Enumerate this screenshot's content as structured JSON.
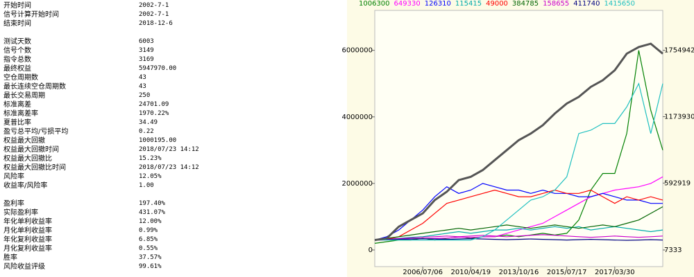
{
  "stats": {
    "groups": [
      [
        {
          "label": "开始时间",
          "value": "2002-7-1"
        },
        {
          "label": "信号计算开始时间",
          "value": "2002-7-1"
        },
        {
          "label": "结束时间",
          "value": "2018-12-6"
        }
      ],
      [
        {
          "label": "测试天数",
          "value": "6003"
        },
        {
          "label": "信号个数",
          "value": "3149"
        },
        {
          "label": "指令总数",
          "value": "3169"
        },
        {
          "label": "最终权益",
          "value": "5947970.00"
        },
        {
          "label": "空仓周期数",
          "value": "43"
        },
        {
          "label": "最长连续空仓周期数",
          "value": "43"
        },
        {
          "label": "最长交易周期",
          "value": "250"
        },
        {
          "label": "标准离差",
          "value": "24701.09"
        },
        {
          "label": "标准离差率",
          "value": "1970.22%"
        },
        {
          "label": "夏普比率",
          "value": "34.49"
        },
        {
          "label": "盈亏总平均/亏损平均",
          "value": "0.22"
        },
        {
          "label": "权益最大回撤",
          "value": "1000195.00"
        },
        {
          "label": "权益最大回撤时间",
          "value": "2018/07/23 14:12"
        },
        {
          "label": "权益最大回撤比",
          "value": "15.23%"
        },
        {
          "label": "权益最大回撤比时间",
          "value": "2018/07/23 14:12"
        },
        {
          "label": "风险率",
          "value": "12.05%"
        },
        {
          "label": "收益率/风险率",
          "value": "1.00"
        }
      ],
      [
        {
          "label": "盈利率",
          "value": "197.40%"
        },
        {
          "label": "实际盈利率",
          "value": "431.07%"
        },
        {
          "label": "年化单利收益率",
          "value": "12.00%"
        },
        {
          "label": "月化单利收益率",
          "value": "0.99%"
        },
        {
          "label": "年化复利收益率",
          "value": "6.85%"
        },
        {
          "label": "月化复利收益率",
          "value": "0.55%"
        },
        {
          "label": "胜率",
          "value": "37.57%"
        },
        {
          "label": "风险收益评级",
          "value": "99.61%"
        }
      ]
    ]
  },
  "chart_data": {
    "type": "line",
    "categories": [
      null,
      null,
      null,
      null,
      "2006/07/06",
      null,
      null,
      null,
      "2010/04/19",
      null,
      null,
      null,
      "2013/10/16",
      null,
      null,
      null,
      "2015/07/17",
      null,
      null,
      null,
      "2017/03/30",
      null,
      null,
      null,
      null
    ],
    "ylim": [
      -500000,
      7200000
    ],
    "yticks": [
      0,
      2000000,
      4000000,
      6000000
    ],
    "y2lim": [
      -138301,
      2104463
    ],
    "y2ticks": [
      7333,
      592919,
      1173930,
      1754942
    ],
    "series": [
      {
        "name": "1006300",
        "color": "#008000",
        "values": [
          200000,
          250000,
          300000,
          300000,
          350000,
          300000,
          350000,
          400000,
          350000,
          400000,
          400000,
          450000,
          400000,
          450000,
          500000,
          450000,
          500000,
          900000,
          1800000,
          2300000,
          2300000,
          3500000,
          6000000,
          4200000,
          3000000
        ]
      },
      {
        "name": "649330",
        "color": "#ff00ff",
        "values": [
          300000,
          300000,
          320000,
          330000,
          340000,
          350000,
          360000,
          380000,
          380000,
          390000,
          400000,
          500000,
          600000,
          700000,
          800000,
          1000000,
          1200000,
          1400000,
          1600000,
          1700000,
          1800000,
          1850000,
          1900000,
          2000000,
          2200000
        ]
      },
      {
        "name": "126310",
        "color": "#0000ff",
        "values": [
          300000,
          400000,
          600000,
          900000,
          1200000,
          1600000,
          1900000,
          1700000,
          1800000,
          2000000,
          1900000,
          1800000,
          1800000,
          1700000,
          1800000,
          1700000,
          1700000,
          1600000,
          1600000,
          1700000,
          1600000,
          1500000,
          1500000,
          1400000,
          1400000
        ]
      },
      {
        "name": "115415",
        "color": "#00aaaa",
        "values": [
          300000,
          320000,
          350000,
          380000,
          400000,
          450000,
          500000,
          550000,
          500000,
          550000,
          600000,
          600000,
          650000,
          600000,
          650000,
          700000,
          650000,
          700000,
          600000,
          650000,
          700000,
          650000,
          600000,
          550000,
          600000
        ]
      },
      {
        "name": "49000",
        "color": "#ff0000",
        "values": [
          300000,
          320000,
          400000,
          600000,
          800000,
          1100000,
          1400000,
          1500000,
          1600000,
          1700000,
          1800000,
          1700000,
          1600000,
          1600000,
          1700000,
          1800000,
          1700000,
          1700000,
          1800000,
          1600000,
          1400000,
          1600000,
          1500000,
          1600000,
          1500000
        ]
      },
      {
        "name": "384785",
        "color": "#006400",
        "values": [
          300000,
          350000,
          400000,
          450000,
          500000,
          550000,
          600000,
          650000,
          600000,
          650000,
          700000,
          750000,
          700000,
          650000,
          700000,
          750000,
          700000,
          650000,
          700000,
          750000,
          700000,
          800000,
          900000,
          1100000,
          1300000
        ]
      },
      {
        "name": "158655",
        "color": "#cc00cc",
        "values": [
          300000,
          320000,
          340000,
          360000,
          380000,
          400000,
          420000,
          400000,
          420000,
          440000,
          420000,
          400000,
          420000,
          440000,
          460000,
          440000,
          420000,
          400000,
          380000,
          400000,
          420000,
          400000,
          380000,
          400000,
          420000
        ]
      },
      {
        "name": "411740",
        "color": "#000080",
        "values": [
          300000,
          310000,
          320000,
          330000,
          340000,
          330000,
          320000,
          330000,
          340000,
          330000,
          320000,
          310000,
          320000,
          330000,
          320000,
          310000,
          300000,
          310000,
          320000,
          310000,
          300000,
          290000,
          300000,
          310000,
          300000
        ]
      },
      {
        "name": "1415650",
        "color": "#20c0c0",
        "values": [
          300000,
          300000,
          300000,
          300000,
          300000,
          300000,
          300000,
          300000,
          300000,
          400000,
          600000,
          900000,
          1200000,
          1500000,
          1600000,
          1800000,
          2200000,
          3500000,
          3600000,
          3800000,
          3800000,
          4300000,
          5000000,
          3500000,
          5000000
        ]
      },
      {
        "color": "#555555",
        "values": [
          300000,
          350000,
          700000,
          900000,
          1100000,
          1500000,
          1750000,
          2100000,
          2200000,
          2400000,
          2700000,
          3000000,
          3300000,
          3500000,
          3750000,
          4100000,
          4400000,
          4600000,
          4900000,
          5100000,
          5400000,
          5900000,
          6100000,
          6200000,
          5900000
        ]
      }
    ]
  }
}
